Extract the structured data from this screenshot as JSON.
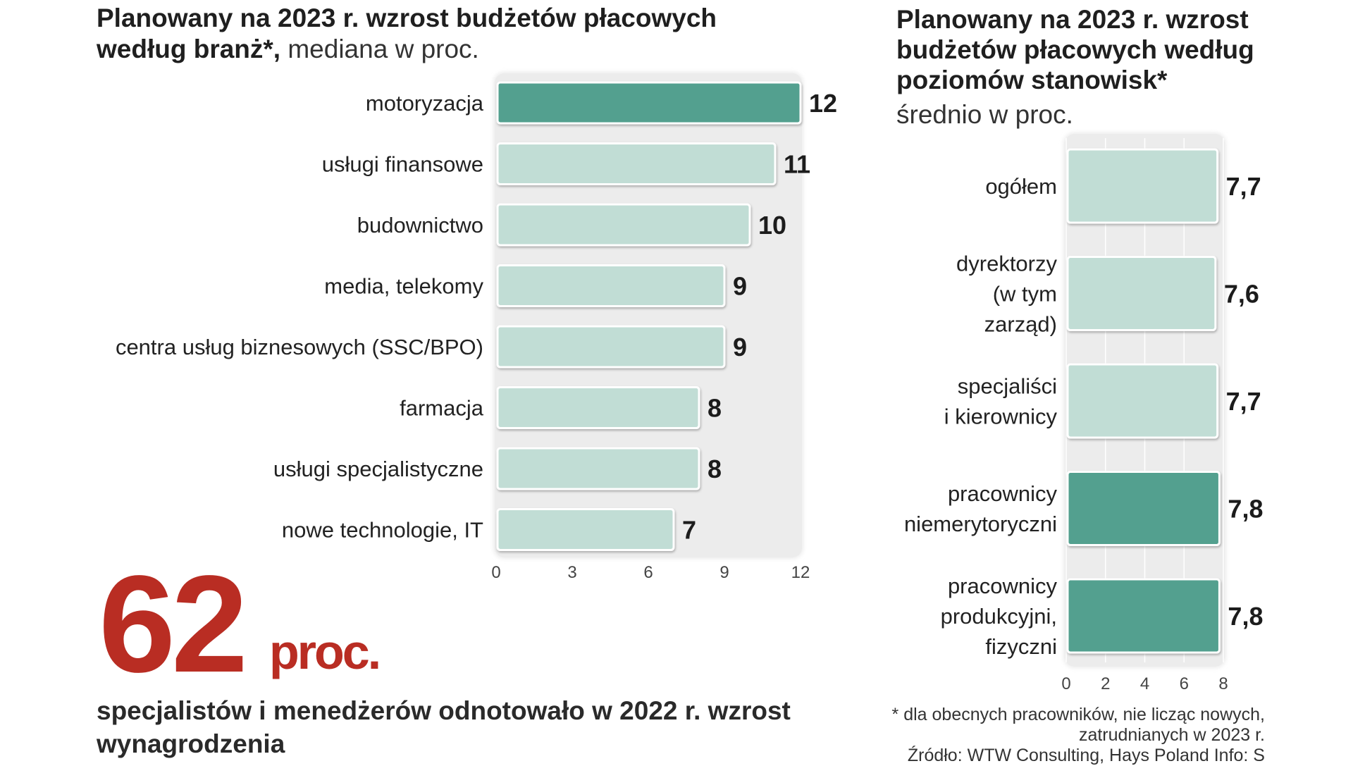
{
  "left_panel": {
    "title_bold": "Planowany na 2023 r. wzrost budżetów płacowych według branż*,",
    "title_light": " mediana w proc."
  },
  "right_panel": {
    "title_bold": "Planowany na 2023 r. wzrost budżetów płacowych według poziomów stanowisk*",
    "title_light": "średnio  w proc."
  },
  "highlight": {
    "number": "62",
    "unit": "proc.",
    "description": "specjalistów i menedżerów odnotowało w 2022 r. wzrost wynagrodzenia"
  },
  "footnote": {
    "line1": "* dla obecnych pracowników, nie licząc  nowych,",
    "line2": "zatrudnianych w 2023 r.",
    "line3": "Źródło: WTW Consulting, Hays Poland   Info: S"
  },
  "colors": {
    "highlight_bar": "#52a08f",
    "normal_bar": "#c1ddd5",
    "bar_border": "#ffffff",
    "plot_background": "#ececec",
    "accent_red": "#b92d23"
  },
  "chart_data": [
    {
      "type": "bar",
      "orientation": "horizontal",
      "categories": [
        "motoryzacja",
        "usługi finansowe",
        "budownictwo",
        "media, telekomy",
        "centra usług biznesowych (SSC/BPO)",
        "farmacja",
        "usługi specjalistyczne",
        "nowe technologie, IT"
      ],
      "values": [
        12,
        11,
        10,
        9,
        9,
        8,
        8,
        7
      ],
      "value_labels": [
        "12",
        "11",
        "10",
        "9",
        "9",
        "8",
        "8",
        "7"
      ],
      "highlighted": [
        true,
        false,
        false,
        false,
        false,
        false,
        false,
        false
      ],
      "xlim": [
        0,
        12
      ],
      "xticks": [
        "0",
        "3",
        "6",
        "9",
        "12"
      ],
      "grid": false
    },
    {
      "type": "bar",
      "orientation": "horizontal",
      "categories": [
        [
          "ogółem"
        ],
        [
          "dyrektorzy",
          "(w tym",
          "zarząd)"
        ],
        [
          "specjaliści",
          "i kierownicy"
        ],
        [
          "pracownicy",
          "niemerytoryczni"
        ],
        [
          "pracownicy",
          "produkcyjni,",
          "fizyczni"
        ]
      ],
      "values": [
        7.7,
        7.6,
        7.7,
        7.8,
        7.8
      ],
      "value_labels": [
        "7,7",
        "7,6",
        "7,7",
        "7,8",
        "7,8"
      ],
      "highlighted": [
        false,
        false,
        false,
        true,
        true
      ],
      "xlim": [
        0,
        8
      ],
      "xticks": [
        "0",
        "2",
        "4",
        "6",
        "8"
      ],
      "grid": true
    }
  ]
}
